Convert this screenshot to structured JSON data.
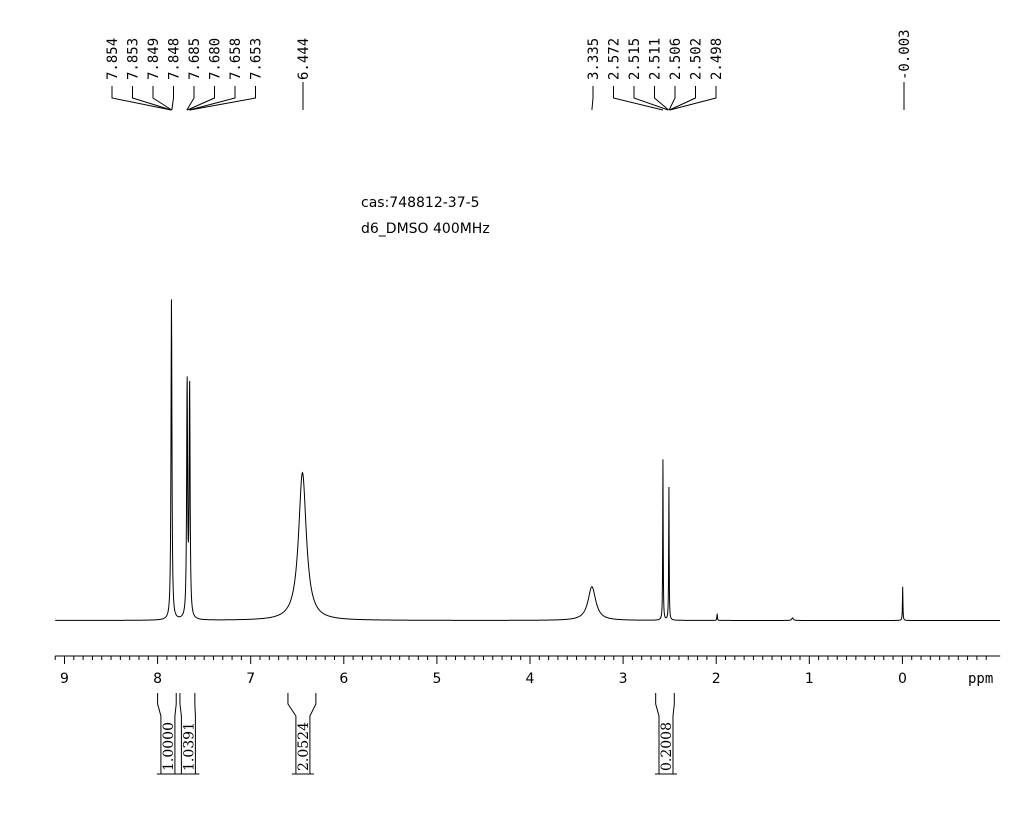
{
  "chart_data": {
    "type": "line",
    "info_lines": [
      "cas:748812-37-5",
      "d6_DMSO   400MHz"
    ],
    "xlabel": "ppm",
    "xlim": [
      9.1,
      -1.05
    ],
    "x_reversed": true,
    "x_ticks": [
      9,
      8,
      7,
      6,
      5,
      4,
      3,
      2,
      1,
      0
    ],
    "grid": false,
    "peak_groups": [
      [
        "7.854",
        "7.853",
        "7.849",
        "7.848",
        "7.685",
        "7.680",
        "7.658",
        "7.653"
      ],
      [
        "6.444"
      ],
      [
        "3.335",
        "2.572",
        "2.515",
        "2.511",
        "2.506",
        "2.502",
        "2.498"
      ],
      [
        "-0.003"
      ]
    ],
    "peaks": [
      {
        "ppm": 7.851,
        "height": 1.0,
        "width": 0.006
      },
      {
        "ppm": 7.683,
        "height": 0.735,
        "width": 0.006
      },
      {
        "ppm": 7.656,
        "height": 0.72,
        "width": 0.006
      },
      {
        "ppm": 6.444,
        "height": 0.46,
        "width": 0.05
      },
      {
        "ppm": 3.335,
        "height": 0.105,
        "width": 0.05
      },
      {
        "ppm": 2.572,
        "height": 0.5,
        "width": 0.003
      },
      {
        "ppm": 2.508,
        "height": 0.42,
        "width": 0.003
      },
      {
        "ppm": 1.99,
        "height": 0.022,
        "width": 0.003
      },
      {
        "ppm": 1.18,
        "height": 0.008,
        "width": 0.01
      },
      {
        "ppm": -0.003,
        "height": 0.105,
        "width": 0.003
      }
    ],
    "integrals": [
      {
        "value": "1.0000",
        "from": 8.0,
        "to": 7.8
      },
      {
        "value": "1.0391",
        "from": 7.76,
        "to": 7.6
      },
      {
        "value": "2.0524",
        "from": 6.6,
        "to": 6.3
      },
      {
        "value": "0.2008",
        "from": 2.65,
        "to": 2.45
      }
    ]
  }
}
